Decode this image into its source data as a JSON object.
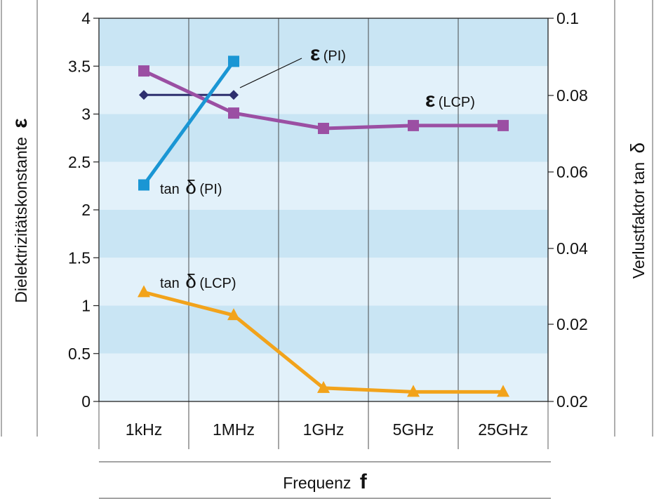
{
  "chart_data": {
    "type": "line",
    "categories": [
      "1kHz",
      "1MHz",
      "1GHz",
      "5GHz",
      "25GHz"
    ],
    "xlabel": {
      "text": "Frequenz",
      "symbol": "f"
    },
    "ylabel_left": {
      "text": "Dielektrizitätskonstante",
      "symbol": "ε"
    },
    "ylabel_right": {
      "text": "Verlustfaktor tan",
      "symbol": "δ"
    },
    "y_left": {
      "min": 0,
      "max": 4,
      "ticks": [
        "0",
        "0.5",
        "1",
        "1.5",
        "2",
        "2.5",
        "3",
        "3.5",
        "4"
      ]
    },
    "y_right": {
      "ticks": [
        "0.02",
        "0.02",
        "0.04",
        "0.06",
        "0.08",
        "0.1"
      ]
    },
    "grid": true,
    "series": [
      {
        "key": "eps_pi",
        "color": "#2d2f6e",
        "marker": "diamond",
        "values": [
          3.2,
          3.2,
          null,
          null,
          null
        ]
      },
      {
        "key": "tan_pi",
        "color": "#1a96d4",
        "marker": "square",
        "values": [
          2.26,
          3.55,
          null,
          null,
          null
        ]
      },
      {
        "key": "eps_lcp",
        "color": "#9b4fa3",
        "marker": "square",
        "values": [
          3.45,
          3.01,
          2.85,
          2.88,
          2.88
        ]
      },
      {
        "key": "tan_lcp",
        "color": "#f2a31b",
        "marker": "triangle",
        "values": [
          1.14,
          0.9,
          0.14,
          0.1,
          0.1
        ]
      }
    ],
    "annotations": {
      "eps_pi": {
        "symbol": "ε",
        "sub": "(PI)"
      },
      "eps_lcp": {
        "symbol": "ε",
        "sub": "(LCP)"
      },
      "tan_pi": {
        "prefix": "tan",
        "symbol": "δ",
        "sub": "(PI)"
      },
      "tan_lcp": {
        "prefix": "tan",
        "symbol": "δ",
        "sub": "(LCP)"
      }
    },
    "colors": {
      "band_light": "#e2f1fa",
      "band_dark": "#c9e5f4"
    }
  }
}
